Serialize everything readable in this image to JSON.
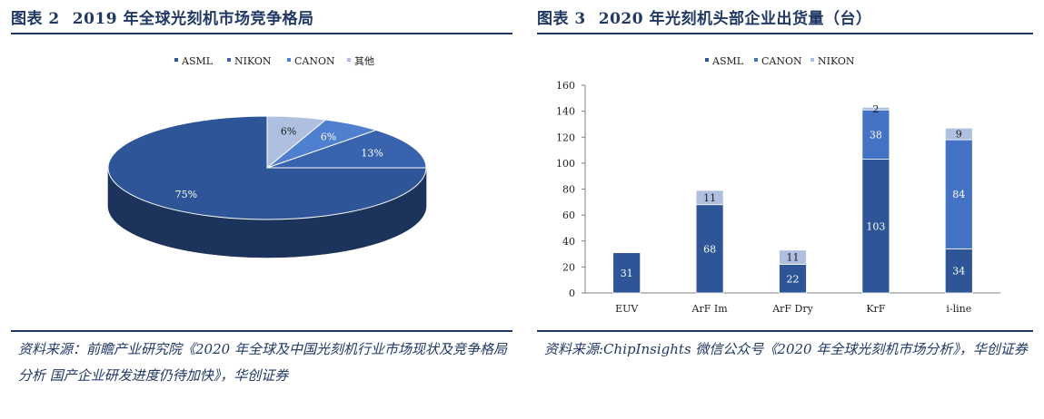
{
  "left_figure": {
    "label": "图表 2",
    "title": "2019 年全球光刻机市场竞争格局",
    "source": "资料来源：前瞻产业研究院《2020 年全球及中国光刻机行业市场现状及竞争格局分析 国产企业研发进度仍待加快》，华创证券"
  },
  "right_figure": {
    "label": "图表 3",
    "title": "2020 年光刻机头部企业出货量（台）",
    "source": "资料来源:ChipInsights 微信公众号《2020 年全球光刻机市场分析》，华创证券"
  },
  "chart_data": [
    {
      "type": "pie",
      "style": "3d",
      "title": "2019 年全球光刻机市场竞争格局",
      "legend_position": "top",
      "legend": [
        "ASML",
        "NIKON",
        "CANON",
        "其他"
      ],
      "slices": [
        {
          "name": "ASML",
          "value": 75,
          "label": "75%",
          "color": "#2e5597"
        },
        {
          "name": "NIKON",
          "value": 13,
          "label": "13%",
          "color": "#3a63ad"
        },
        {
          "name": "CANON",
          "value": 6,
          "label": "6%",
          "color": "#4f7fcf"
        },
        {
          "name": "其他",
          "value": 6,
          "label": "6%",
          "color": "#aebfe0"
        }
      ]
    },
    {
      "type": "bar",
      "stacked": true,
      "title": "2020 年光刻机头部企业出货量（台）",
      "legend_position": "top",
      "categories": [
        "EUV",
        "ArF Im",
        "ArF Dry",
        "KrF",
        "i-line"
      ],
      "ylim": [
        0,
        160
      ],
      "yticks": [
        0,
        20,
        40,
        60,
        80,
        100,
        120,
        140,
        160
      ],
      "series": [
        {
          "name": "ASML",
          "color": "#2e5597",
          "values": [
            31,
            68,
            22,
            103,
            34
          ]
        },
        {
          "name": "CANON",
          "color": "#4472c4",
          "values": [
            0,
            0,
            0,
            38,
            84
          ]
        },
        {
          "name": "NIKON",
          "color": "#aebfe0",
          "values": [
            0,
            11,
            11,
            2,
            9
          ]
        }
      ]
    }
  ]
}
